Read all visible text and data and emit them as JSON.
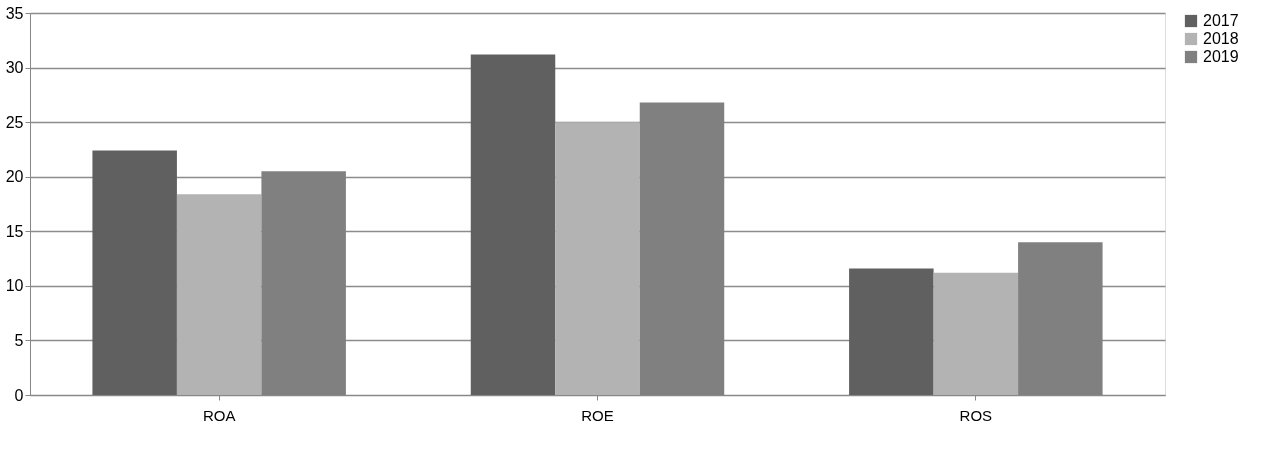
{
  "chart_data": {
    "type": "bar",
    "categories": [
      "ROA",
      "ROE",
      "ROS"
    ],
    "series": [
      {
        "name": "2017",
        "color": "#606060",
        "values": [
          22.4,
          31.2,
          11.6
        ]
      },
      {
        "name": "2018",
        "color": "#b3b3b3",
        "values": [
          18.4,
          25.0,
          11.2
        ]
      },
      {
        "name": "2019",
        "color": "#808080",
        "values": [
          20.5,
          26.8,
          14.0
        ]
      }
    ],
    "ylim": [
      0,
      35
    ],
    "yticks": [
      0,
      5,
      10,
      15,
      20,
      25,
      30,
      35
    ],
    "grid": "y",
    "legend": "right"
  }
}
